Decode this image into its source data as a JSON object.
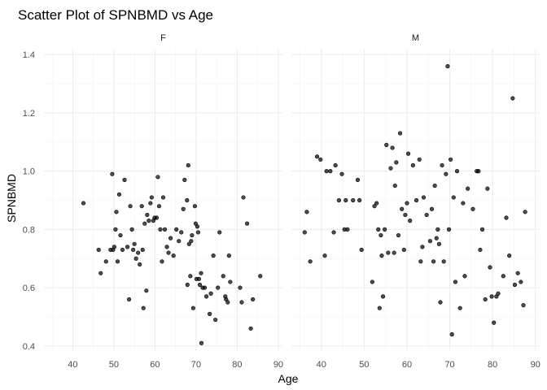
{
  "chart_data": {
    "type": "scatter",
    "title": "Scatter Plot of SPNBMD vs Age",
    "xlabel": "Age",
    "ylabel": "SPNBMD",
    "xlim": [
      33,
      91
    ],
    "ylim": [
      0.38,
      1.42
    ],
    "x_ticks": [
      40,
      50,
      60,
      70,
      80,
      90
    ],
    "y_ticks": [
      0.4,
      0.6,
      0.8,
      1.0,
      1.2,
      1.4
    ],
    "y_tick_labels": [
      "0.4",
      "0.6",
      "0.8",
      "1.0",
      "1.2",
      "1.4"
    ],
    "grid": true,
    "facets": [
      {
        "label": "F",
        "points": [
          [
            42.6,
            0.89
          ],
          [
            46.3,
            0.73
          ],
          [
            46.8,
            0.65
          ],
          [
            48.1,
            0.69
          ],
          [
            49.2,
            0.73
          ],
          [
            49.6,
            0.99
          ],
          [
            49.8,
            0.73
          ],
          [
            50.1,
            0.74
          ],
          [
            50.4,
            0.8
          ],
          [
            50.6,
            0.86
          ],
          [
            50.9,
            0.69
          ],
          [
            51.3,
            0.92
          ],
          [
            51.6,
            0.78
          ],
          [
            52.1,
            0.73
          ],
          [
            52.6,
            0.97
          ],
          [
            53.3,
            0.74
          ],
          [
            53.7,
            0.56
          ],
          [
            54.0,
            0.88
          ],
          [
            54.4,
            0.8
          ],
          [
            54.7,
            0.73
          ],
          [
            55.0,
            0.75
          ],
          [
            55.4,
            0.7
          ],
          [
            55.9,
            0.72
          ],
          [
            56.3,
            0.68
          ],
          [
            56.8,
            0.88
          ],
          [
            57.0,
            0.73
          ],
          [
            57.2,
            0.53
          ],
          [
            57.5,
            0.82
          ],
          [
            57.9,
            0.59
          ],
          [
            58.1,
            0.85
          ],
          [
            58.5,
            0.83
          ],
          [
            58.9,
            0.89
          ],
          [
            59.2,
            0.91
          ],
          [
            59.6,
            0.83
          ],
          [
            59.9,
            0.84
          ],
          [
            60.4,
            0.84
          ],
          [
            60.7,
            0.98
          ],
          [
            61.0,
            0.88
          ],
          [
            61.3,
            0.8
          ],
          [
            61.7,
            0.69
          ],
          [
            62.0,
            0.91
          ],
          [
            62.4,
            0.8
          ],
          [
            62.9,
            0.74
          ],
          [
            63.3,
            0.72
          ],
          [
            63.8,
            0.77
          ],
          [
            64.5,
            0.71
          ],
          [
            65.2,
            0.8
          ],
          [
            65.8,
            0.76
          ],
          [
            66.4,
            0.79
          ],
          [
            66.9,
            0.87
          ],
          [
            67.2,
            0.97
          ],
          [
            67.8,
            0.9
          ],
          [
            67.9,
            0.61
          ],
          [
            68.1,
            1.02
          ],
          [
            68.3,
            0.75
          ],
          [
            68.6,
            0.64
          ],
          [
            68.8,
            0.76
          ],
          [
            69.0,
            0.78
          ],
          [
            69.3,
            0.53
          ],
          [
            69.7,
            0.88
          ],
          [
            69.9,
            0.82
          ],
          [
            70.1,
            0.63
          ],
          [
            70.3,
            0.81
          ],
          [
            70.5,
            0.79
          ],
          [
            70.7,
            0.63
          ],
          [
            70.9,
            0.61
          ],
          [
            71.2,
            0.65
          ],
          [
            71.3,
            0.41
          ],
          [
            71.6,
            0.6
          ],
          [
            72.1,
            0.6
          ],
          [
            72.5,
            0.57
          ],
          [
            73.3,
            0.51
          ],
          [
            73.6,
            0.58
          ],
          [
            74.2,
            0.71
          ],
          [
            74.7,
            0.49
          ],
          [
            75.3,
            0.6
          ],
          [
            75.7,
            0.79
          ],
          [
            76.6,
            0.64
          ],
          [
            77.1,
            0.57
          ],
          [
            77.3,
            0.56
          ],
          [
            77.7,
            0.55
          ],
          [
            78.0,
            0.71
          ],
          [
            78.3,
            0.62
          ],
          [
            80.7,
            0.6
          ],
          [
            81.1,
            0.55
          ],
          [
            81.5,
            0.91
          ],
          [
            82.4,
            0.82
          ],
          [
            83.3,
            0.46
          ],
          [
            83.8,
            0.56
          ],
          [
            85.6,
            0.64
          ]
        ]
      },
      {
        "label": "M",
        "points": [
          [
            36.1,
            0.79
          ],
          [
            36.6,
            0.86
          ],
          [
            37.4,
            0.69
          ],
          [
            39.0,
            1.05
          ],
          [
            39.8,
            1.04
          ],
          [
            40.8,
            0.71
          ],
          [
            41.2,
            1.0
          ],
          [
            42.1,
            1.0
          ],
          [
            42.9,
            0.79
          ],
          [
            43.3,
            1.02
          ],
          [
            44.1,
            0.9
          ],
          [
            44.8,
            0.99
          ],
          [
            45.4,
            0.8
          ],
          [
            45.7,
            0.9
          ],
          [
            46.1,
            0.8
          ],
          [
            47.4,
            0.9
          ],
          [
            48.5,
            0.97
          ],
          [
            48.9,
            0.9
          ],
          [
            49.4,
            0.73
          ],
          [
            51.9,
            0.62
          ],
          [
            52.4,
            0.88
          ],
          [
            52.9,
            0.89
          ],
          [
            53.3,
            0.8
          ],
          [
            53.6,
            0.53
          ],
          [
            53.9,
            0.78
          ],
          [
            54.1,
            0.71
          ],
          [
            54.4,
            0.57
          ],
          [
            54.8,
            0.8
          ],
          [
            55.2,
            1.09
          ],
          [
            55.6,
            0.72
          ],
          [
            56.2,
            1.01
          ],
          [
            56.6,
            1.08
          ],
          [
            57.0,
            0.72
          ],
          [
            57.2,
            0.95
          ],
          [
            57.5,
            1.03
          ],
          [
            58.0,
            0.78
          ],
          [
            58.4,
            1.13
          ],
          [
            58.8,
            0.87
          ],
          [
            59.3,
            0.73
          ],
          [
            59.6,
            0.85
          ],
          [
            60.0,
            0.89
          ],
          [
            60.3,
            1.06
          ],
          [
            60.7,
            0.83
          ],
          [
            61.4,
            1.02
          ],
          [
            62.2,
            0.9
          ],
          [
            62.9,
            1.04
          ],
          [
            63.2,
            0.69
          ],
          [
            63.6,
            0.74
          ],
          [
            63.9,
            0.91
          ],
          [
            64.6,
            0.85
          ],
          [
            65.4,
            0.76
          ],
          [
            65.8,
            0.87
          ],
          [
            66.2,
            0.69
          ],
          [
            66.5,
            0.95
          ],
          [
            66.9,
            0.77
          ],
          [
            67.2,
            0.8
          ],
          [
            67.5,
            0.75
          ],
          [
            67.8,
            0.55
          ],
          [
            68.2,
            1.02
          ],
          [
            68.6,
            0.69
          ],
          [
            69.1,
            0.99
          ],
          [
            69.5,
            1.36
          ],
          [
            69.8,
            0.8
          ],
          [
            70.2,
            1.04
          ],
          [
            70.5,
            0.44
          ],
          [
            70.9,
            0.91
          ],
          [
            71.3,
            0.62
          ],
          [
            71.7,
            1.0
          ],
          [
            72.4,
            0.53
          ],
          [
            73.1,
            0.89
          ],
          [
            73.5,
            0.64
          ],
          [
            74.2,
            0.94
          ],
          [
            75.4,
            0.87
          ],
          [
            76.3,
            1.0
          ],
          [
            76.7,
            1.0
          ],
          [
            77.1,
            0.73
          ],
          [
            77.6,
            0.8
          ],
          [
            78.3,
            0.56
          ],
          [
            78.8,
            0.94
          ],
          [
            79.4,
            0.67
          ],
          [
            79.8,
            0.57
          ],
          [
            80.3,
            0.48
          ],
          [
            80.9,
            0.57
          ],
          [
            81.3,
            0.58
          ],
          [
            82.5,
            0.64
          ],
          [
            83.2,
            0.84
          ],
          [
            83.9,
            0.71
          ],
          [
            84.7,
            1.25
          ],
          [
            85.2,
            0.61
          ],
          [
            85.9,
            0.65
          ],
          [
            86.6,
            0.62
          ],
          [
            87.2,
            0.54
          ],
          [
            87.6,
            0.86
          ]
        ]
      }
    ]
  }
}
